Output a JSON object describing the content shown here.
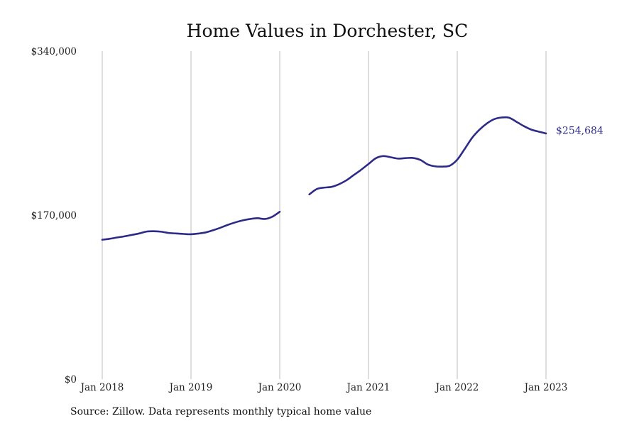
{
  "chart_data": {
    "type": "line",
    "title": "Home Values in Dorchester, SC",
    "xlabel": "",
    "ylabel": "",
    "x_tick_labels": [
      "Jan 2018",
      "Jan 2019",
      "Jan 2020",
      "Jan 2021",
      "Jan 2022",
      "Jan 2023"
    ],
    "y_tick_labels": [
      "$0",
      "$170,000",
      "$340,000"
    ],
    "y_ticks": [
      0,
      170000,
      340000
    ],
    "ylim": [
      0,
      340000
    ],
    "xlim": [
      "2018-01",
      "2023-01"
    ],
    "grid": "vertical",
    "legend": "none",
    "colors": {
      "line": "#2e2a87",
      "grid": "#bdbdbd"
    },
    "end_label": "$254,684",
    "series": [
      {
        "segments": [
          [
            [
              "2018-01",
              144500
            ],
            [
              "2018-02",
              145500
            ],
            [
              "2018-03",
              146800
            ],
            [
              "2018-04",
              148000
            ],
            [
              "2018-05",
              149500
            ],
            [
              "2018-06",
              151000
            ],
            [
              "2018-07",
              153000
            ],
            [
              "2018-08",
              153300
            ],
            [
              "2018-09",
              152800
            ],
            [
              "2018-10",
              151500
            ],
            [
              "2018-11",
              151000
            ],
            [
              "2018-12",
              150500
            ],
            [
              "2019-01",
              150200
            ],
            [
              "2019-02",
              150900
            ],
            [
              "2019-03",
              152100
            ],
            [
              "2019-04",
              154400
            ],
            [
              "2019-05",
              157000
            ],
            [
              "2019-06",
              160000
            ],
            [
              "2019-07",
              162500
            ],
            [
              "2019-08",
              164600
            ],
            [
              "2019-09",
              166000
            ],
            [
              "2019-10",
              166800
            ],
            [
              "2019-11",
              166000
            ],
            [
              "2019-12",
              168400
            ],
            [
              "2020-01",
              173500
            ]
          ],
          [
            [
              "2020-05",
              191500
            ],
            [
              "2020-06",
              197000
            ],
            [
              "2020-07",
              198500
            ],
            [
              "2020-08",
              199300
            ],
            [
              "2020-09",
              202000
            ],
            [
              "2020-10",
              206000
            ],
            [
              "2020-11",
              211500
            ],
            [
              "2020-12",
              217000
            ],
            [
              "2021-01",
              223000
            ],
            [
              "2021-02",
              229000
            ],
            [
              "2021-03",
              231200
            ],
            [
              "2021-04",
              230000
            ],
            [
              "2021-05",
              228600
            ],
            [
              "2021-06",
              229100
            ],
            [
              "2021-07",
              229300
            ],
            [
              "2021-08",
              227300
            ],
            [
              "2021-09",
              222600
            ],
            [
              "2021-10",
              220600
            ],
            [
              "2021-11",
              220300
            ],
            [
              "2021-12",
              221300
            ],
            [
              "2022-01",
              227500
            ],
            [
              "2022-02",
              238500
            ],
            [
              "2022-03",
              250000
            ],
            [
              "2022-04",
              258500
            ],
            [
              "2022-05",
              265000
            ],
            [
              "2022-06",
              269500
            ],
            [
              "2022-07",
              271200
            ],
            [
              "2022-08",
              271000
            ],
            [
              "2022-09",
              266800
            ],
            [
              "2022-10",
              262300
            ],
            [
              "2022-11",
              258700
            ],
            [
              "2022-12",
              256600
            ],
            [
              "2023-01",
              254684
            ]
          ]
        ]
      }
    ]
  },
  "footer": {
    "source": "Source: Zillow. Data represents monthly typical home value"
  }
}
